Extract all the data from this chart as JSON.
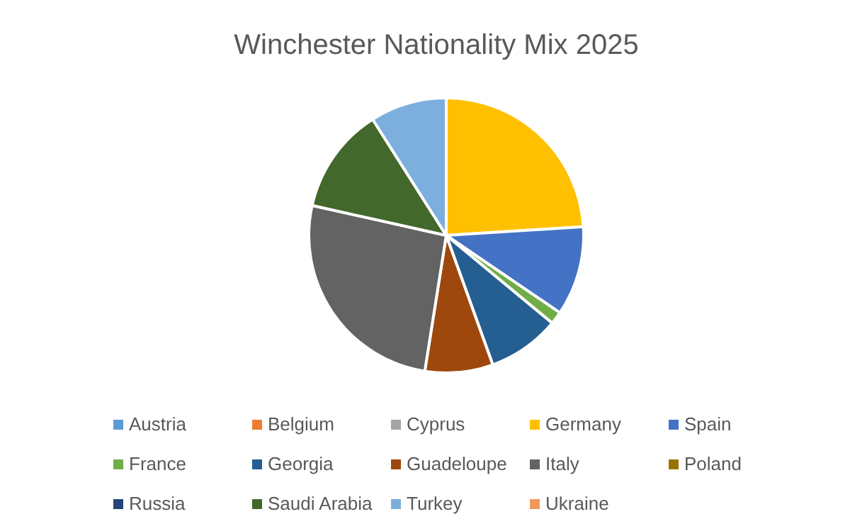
{
  "chart_data": {
    "type": "pie",
    "title": "Winchester Nationality Mix 2025",
    "categories": [
      "Austria",
      "Belgium",
      "Cyprus",
      "Germany",
      "Spain",
      "France",
      "Georgia",
      "Guadeloupe",
      "Italy",
      "Poland",
      "Russia",
      "Saudi Arabia",
      "Turkey",
      "Ukraine"
    ],
    "values": [
      0,
      0,
      0,
      24,
      10.5,
      1.5,
      8.5,
      8,
      26,
      0,
      0,
      12.5,
      9,
      0
    ],
    "colors": [
      "#5b9bd5",
      "#ed7d31",
      "#a5a5a5",
      "#ffc000",
      "#4472c4",
      "#70ad47",
      "#255e91",
      "#9e480e",
      "#636363",
      "#997300",
      "#264478",
      "#43682b",
      "#7cafdd",
      "#f1975a"
    ],
    "legend": "bottom"
  }
}
